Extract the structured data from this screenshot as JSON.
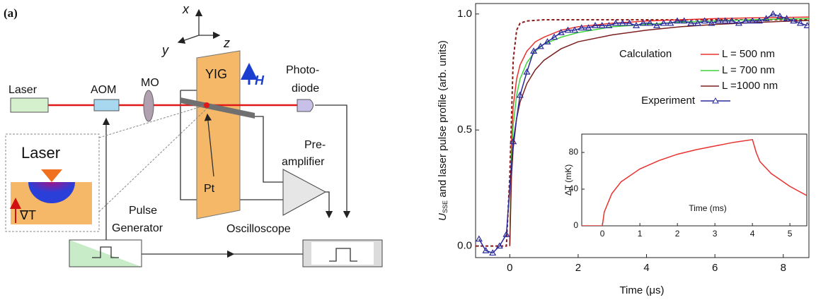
{
  "diagram": {
    "panel_label": "(a)",
    "axes": {
      "x": "x",
      "y": "y",
      "z": "z"
    },
    "laser": "Laser",
    "aom": "AOM",
    "mo": "MO",
    "yig": "YIG",
    "field": "H",
    "photodiode": [
      "Photo-",
      "diode"
    ],
    "pt": "Pt",
    "preamplifier": [
      "Pre-",
      "amplifier"
    ],
    "pulse_generator": [
      "Pulse",
      "Generator"
    ],
    "oscilloscope": "Oscilloscope",
    "inset": {
      "title": "Laser",
      "gradient": "∇T"
    }
  },
  "chart_data": [
    {
      "type": "line",
      "xlabel": "Time (μs)",
      "ylabel": {
        "symbol": "U",
        "subscript": "SSE",
        "text": " and laser pulse profile (arb. units)"
      },
      "xlim": [
        -1,
        8.75
      ],
      "ylim": [
        -0.05,
        1.045
      ],
      "xticks": [
        0,
        2,
        4,
        6,
        8
      ],
      "yticks": [
        {
          "value": 0,
          "label": "0.0"
        },
        0.5,
        {
          "value": 1,
          "label": "1.0"
        }
      ],
      "grid": false,
      "legend": "right",
      "legend_title": "Calculation",
      "series": [
        {
          "color": "#8b1a1a",
          "dash": true,
          "x": [
            -1,
            -0.1,
            0,
            0.1,
            0.2,
            0.3,
            0.5,
            1,
            2,
            4,
            6,
            8,
            8.75
          ],
          "values": [
            0,
            0,
            0.3,
            0.8,
            0.93,
            0.96,
            0.97,
            0.975,
            0.975,
            0.975,
            0.975,
            0.975,
            0.975
          ]
        },
        {
          "name": "L =  500 nm",
          "color": "#e8322f",
          "x": [
            0,
            0.05,
            0.1,
            0.2,
            0.3,
            0.5,
            0.75,
            1,
            1.5,
            2,
            3,
            4,
            5,
            6,
            7,
            8,
            8.75
          ],
          "values": [
            0,
            0.45,
            0.6,
            0.72,
            0.78,
            0.84,
            0.88,
            0.9,
            0.93,
            0.945,
            0.96,
            0.97,
            0.975,
            0.98,
            0.983,
            0.985,
            0.987
          ]
        },
        {
          "name": "L =  700 nm",
          "color": "#3ed43a",
          "x": [
            0,
            0.05,
            0.1,
            0.2,
            0.3,
            0.5,
            0.75,
            1,
            1.5,
            2,
            3,
            4,
            5,
            6,
            7,
            8,
            8.75
          ],
          "values": [
            0,
            0.38,
            0.52,
            0.65,
            0.72,
            0.79,
            0.84,
            0.87,
            0.9,
            0.92,
            0.945,
            0.955,
            0.965,
            0.97,
            0.975,
            0.978,
            0.98
          ]
        },
        {
          "name": "L =1000 nm",
          "color": "#7a2020",
          "x": [
            0,
            0.05,
            0.1,
            0.2,
            0.3,
            0.5,
            0.75,
            1,
            1.5,
            2,
            3,
            4,
            5,
            6,
            7,
            8,
            8.75
          ],
          "values": [
            0,
            0.3,
            0.42,
            0.55,
            0.62,
            0.7,
            0.76,
            0.8,
            0.85,
            0.88,
            0.91,
            0.93,
            0.945,
            0.955,
            0.962,
            0.968,
            0.972
          ]
        },
        {
          "name": "Experiment",
          "color": "#2a2a9a",
          "marker": "triangle",
          "x": [
            -0.9,
            -0.7,
            -0.5,
            -0.3,
            -0.1,
            0.1,
            0.3,
            0.5,
            0.7,
            0.9,
            1.1,
            1.3,
            1.5,
            1.7,
            1.9,
            2.1,
            2.3,
            2.5,
            2.7,
            2.9,
            3.1,
            3.3,
            3.5,
            3.7,
            3.9,
            4.1,
            4.3,
            4.5,
            4.7,
            4.9,
            5.1,
            5.3,
            5.5,
            5.7,
            5.9,
            6.1,
            6.3,
            6.5,
            6.7,
            6.9,
            7.1,
            7.3,
            7.5,
            7.7,
            7.9,
            8.1,
            8.3,
            8.5,
            8.7
          ],
          "values": [
            0.03,
            -0.02,
            -0.03,
            0.0,
            0.05,
            0.45,
            0.65,
            0.75,
            0.84,
            0.86,
            0.88,
            0.9,
            0.92,
            0.93,
            0.93,
            0.94,
            0.94,
            0.95,
            0.95,
            0.95,
            0.96,
            0.96,
            0.96,
            0.95,
            0.96,
            0.96,
            0.95,
            0.96,
            0.96,
            0.97,
            0.97,
            0.96,
            0.96,
            0.97,
            0.96,
            0.97,
            0.97,
            0.97,
            0.96,
            0.97,
            0.97,
            0.97,
            0.98,
            1.0,
            0.99,
            0.98,
            0.97,
            0.96,
            0.95
          ]
        }
      ]
    },
    {
      "type": "line",
      "xlabel": "Time (ms)",
      "ylabel": "ΔT (mK)",
      "xlim": [
        -0.55,
        5.45
      ],
      "ylim": [
        0,
        100
      ],
      "xticks": [
        0,
        1,
        2,
        3,
        4,
        5
      ],
      "yticks": [
        0,
        40,
        80
      ],
      "grid": false,
      "series": [
        {
          "color": "#e8322f",
          "x": [
            -0.55,
            0,
            0.05,
            0.25,
            0.5,
            1,
            1.5,
            2,
            2.5,
            3,
            3.5,
            4,
            4.1,
            4.2,
            4.5,
            5,
            5.45
          ],
          "values": [
            0,
            0,
            15,
            35,
            48,
            62,
            71,
            78,
            83,
            87,
            91,
            94,
            80,
            70,
            57,
            43,
            33
          ]
        }
      ]
    }
  ]
}
